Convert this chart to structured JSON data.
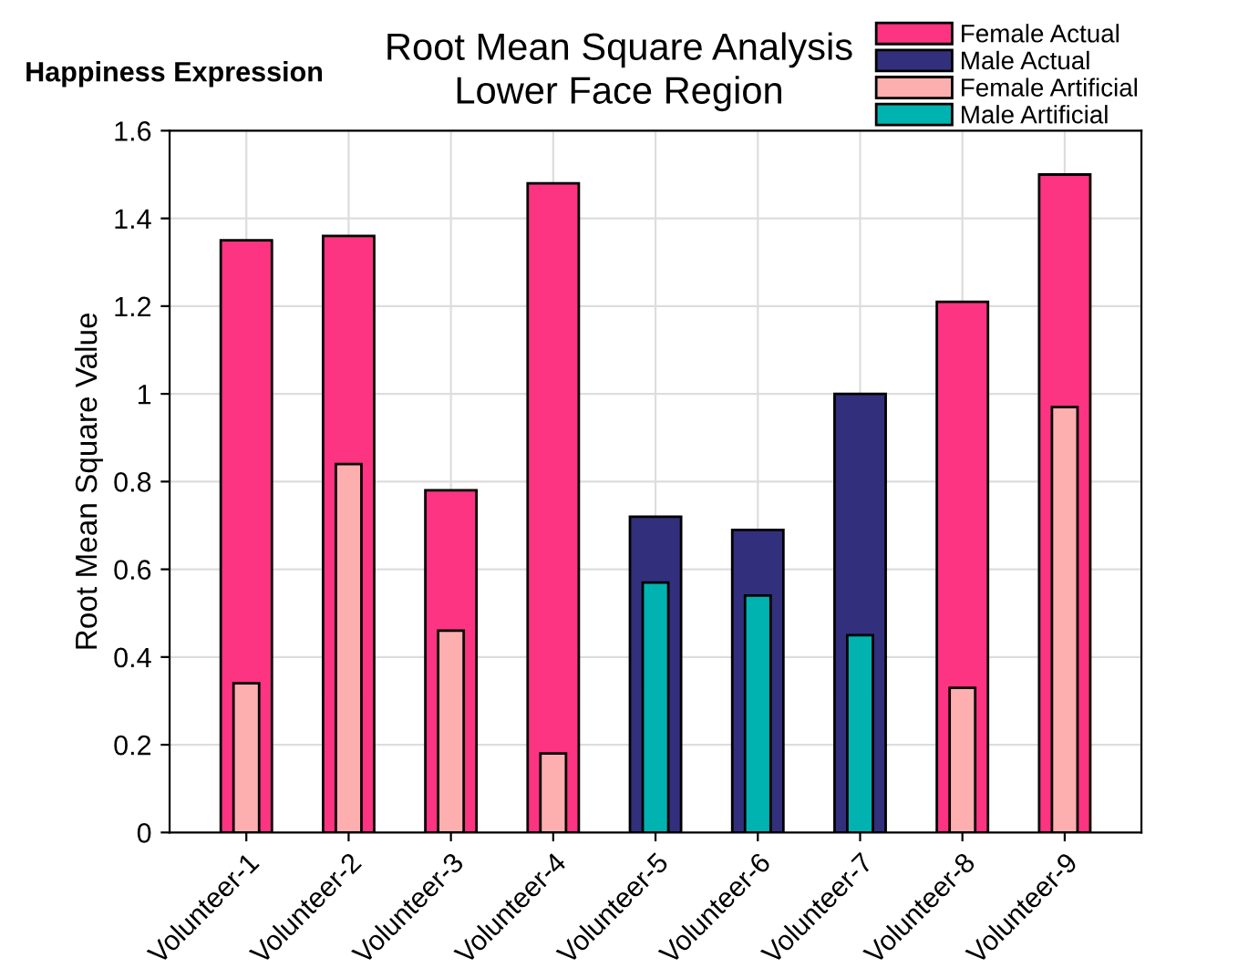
{
  "chart_data": {
    "type": "bar",
    "title": "Root Mean Square Analysis\nLower Face Region",
    "ylabel": "Root Mean Square Value",
    "annotations": [
      "Happiness Expression"
    ],
    "categories": [
      "Volunteer-1",
      "Volunteer-2",
      "Volunteer-3",
      "Volunteer-4",
      "Volunteer-5",
      "Volunteer-6",
      "Volunteer-7",
      "Volunteer-8",
      "Volunteer-9"
    ],
    "series": [
      {
        "name": "Female Actual",
        "color": "#fc3481",
        "values": [
          1.35,
          1.36,
          0.78,
          1.48,
          null,
          null,
          null,
          1.21,
          1.5
        ]
      },
      {
        "name": "Male Actual",
        "color": "#32307c",
        "values": [
          null,
          null,
          null,
          null,
          0.72,
          0.69,
          1.0,
          null,
          null
        ]
      },
      {
        "name": "Female Artificial",
        "color": "#fdafaf",
        "values": [
          0.34,
          0.84,
          0.46,
          0.18,
          null,
          null,
          null,
          0.33,
          0.97
        ]
      },
      {
        "name": "Male Artificial",
        "color": "#00b3b1",
        "values": [
          null,
          null,
          null,
          null,
          0.57,
          0.54,
          0.45,
          null,
          null
        ]
      }
    ],
    "ylim": [
      0,
      1.6
    ],
    "yticks": [
      0,
      0.2,
      0.4,
      0.6,
      0.8,
      1,
      1.2,
      1.4,
      1.6
    ],
    "grid": true,
    "legend": "top right"
  }
}
